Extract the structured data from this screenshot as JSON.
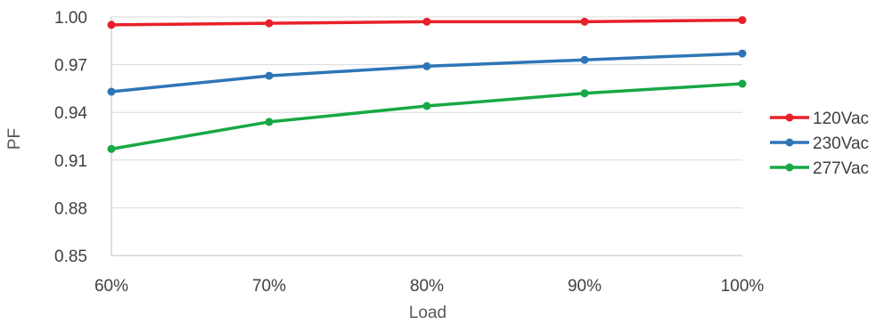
{
  "chart_data": {
    "type": "line",
    "title": "",
    "xlabel": "Load",
    "ylabel": "PF",
    "categories": [
      "60%",
      "70%",
      "80%",
      "90%",
      "100%"
    ],
    "ylim": [
      0.85,
      1.0
    ],
    "yticks": [
      "0.85",
      "0.88",
      "0.91",
      "0.94",
      "0.97",
      "1.00"
    ],
    "grid": true,
    "legend_position": "right",
    "series": [
      {
        "name": "120Vac",
        "color": "#e8202a",
        "values": [
          0.995,
          0.996,
          0.997,
          0.997,
          0.998
        ]
      },
      {
        "name": "230Vac",
        "color": "#2e75b6",
        "values": [
          0.953,
          0.963,
          0.969,
          0.973,
          0.977
        ]
      },
      {
        "name": "277Vac",
        "color": "#18a844",
        "values": [
          0.917,
          0.934,
          0.944,
          0.952,
          0.958
        ]
      }
    ]
  }
}
